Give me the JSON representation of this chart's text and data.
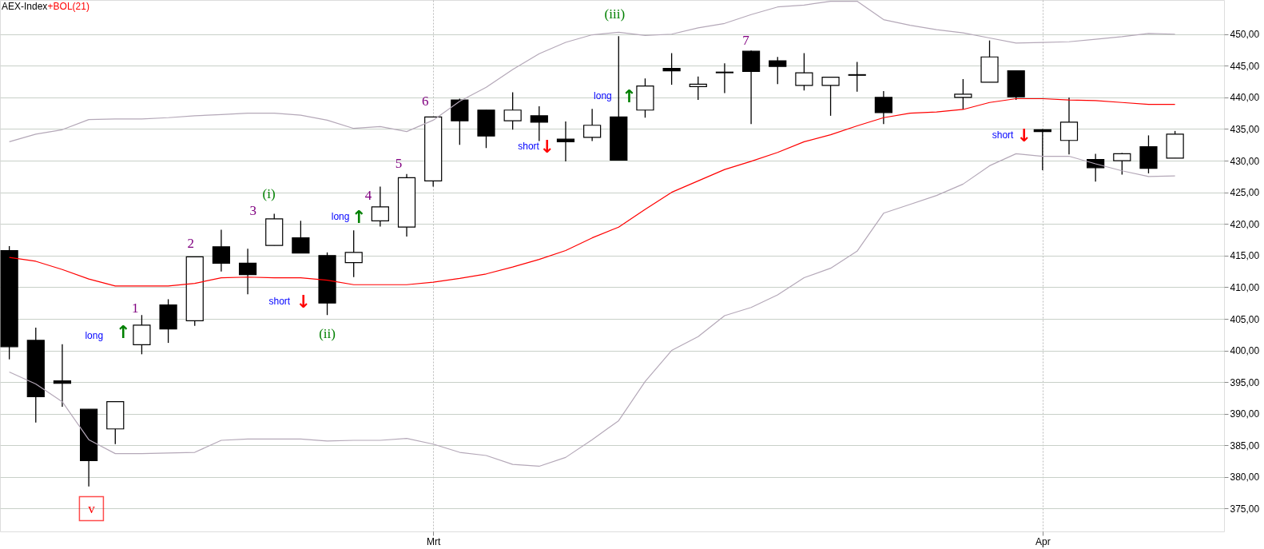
{
  "chart_data": {
    "type": "candlestick",
    "title": "AEX-Index",
    "categories": [
      null,
      null,
      null,
      null,
      null,
      null,
      null,
      null,
      null,
      null,
      null,
      null,
      null,
      null,
      null,
      null,
      "Mrt",
      null,
      null,
      null,
      null,
      null,
      null,
      null,
      null,
      null,
      null,
      null,
      null,
      null,
      null,
      null,
      null,
      null,
      null,
      null,
      null,
      null,
      null,
      "Apr",
      null,
      null,
      null,
      null,
      null
    ],
    "ohlc": [
      [
        415.8,
        416.5,
        398.6,
        400.6
      ],
      [
        401.6,
        403.6,
        388.6,
        392.7
      ],
      [
        395.2,
        401.0,
        391.1,
        394.8
      ],
      [
        390.7,
        390.7,
        378.5,
        382.6
      ],
      [
        387.6,
        391.9,
        385.2,
        391.9
      ],
      [
        400.9,
        405.6,
        399.4,
        404.0
      ],
      [
        407.2,
        408.1,
        401.2,
        403.4
      ],
      [
        404.7,
        414.8,
        403.9,
        414.8
      ],
      [
        416.4,
        419.1,
        412.5,
        413.8
      ],
      [
        413.8,
        416.1,
        408.9,
        412.0
      ],
      [
        416.6,
        421.6,
        416.6,
        420.8
      ],
      [
        417.8,
        420.5,
        415.4,
        415.4
      ],
      [
        415.0,
        415.5,
        405.6,
        407.5
      ],
      [
        413.9,
        419.0,
        411.6,
        415.5
      ],
      [
        420.5,
        425.9,
        419.6,
        422.7
      ],
      [
        419.5,
        427.9,
        418.0,
        427.3
      ],
      [
        426.8,
        436.9,
        425.9,
        436.9
      ],
      [
        439.6,
        439.8,
        432.5,
        436.3
      ],
      [
        438.0,
        438.0,
        432.0,
        433.9
      ],
      [
        436.3,
        440.8,
        434.9,
        438.0
      ],
      [
        437.1,
        438.6,
        433.1,
        436.1
      ],
      [
        433.4,
        436.2,
        429.9,
        433.0
      ],
      [
        433.7,
        438.2,
        433.1,
        435.6
      ],
      [
        436.9,
        449.7,
        430.1,
        430.1
      ],
      [
        438.0,
        443.0,
        436.8,
        441.8
      ],
      [
        444.6,
        447.0,
        442.0,
        444.2
      ],
      [
        441.7,
        443.3,
        439.6,
        442.1
      ],
      [
        443.9,
        445.4,
        440.7,
        444.0
      ],
      [
        447.3,
        447.4,
        435.8,
        444.1
      ],
      [
        445.8,
        446.4,
        442.1,
        444.9
      ],
      [
        441.9,
        447.0,
        441.1,
        443.9
      ],
      [
        441.9,
        443.2,
        437.1,
        443.2
      ],
      [
        443.5,
        445.6,
        440.9,
        443.6
      ],
      [
        440.0,
        441.0,
        435.8,
        437.6
      ],
      null,
      null,
      [
        440.0,
        442.9,
        438.1,
        440.5
      ],
      [
        442.4,
        449.0,
        442.4,
        446.4
      ],
      [
        444.2,
        444.2,
        439.6,
        440.1
      ],
      [
        434.9,
        435.0,
        428.5,
        434.6
      ],
      [
        433.2,
        440.0,
        431.0,
        436.1
      ],
      [
        430.2,
        431.1,
        426.7,
        428.9
      ],
      [
        430.0,
        431.2,
        427.8,
        431.1
      ],
      [
        432.2,
        434.0,
        428.0,
        428.8
      ],
      [
        430.4,
        434.7,
        430.4,
        434.2
      ]
    ],
    "colors": [
      "#000000",
      "#000000",
      "#000000",
      "#000000",
      "#ffffff",
      "#ffffff",
      "#000000",
      "#ffffff",
      "#000000",
      "#000000",
      "#ffffff",
      "#000000",
      "#000000",
      "#ffffff",
      "#ffffff",
      "#ffffff",
      "#ffffff",
      "#000000",
      "#000000",
      "#ffffff",
      "#000000",
      "#000000",
      "#ffffff",
      "#000000",
      "#ffffff",
      "#000000",
      "#ffffff",
      "#ffffff",
      "#000000",
      "#000000",
      "#ffffff",
      "#ffffff",
      "#ffffff",
      "#000000",
      null,
      null,
      "#ffffff",
      "#ffffff",
      "#000000",
      "#000000",
      "#ffffff",
      "#000000",
      "#ffffff",
      "#000000",
      "#ffffff"
    ],
    "color": "#000000",
    "series": [
      {
        "name": "+BOL(21)",
        "type": "line",
        "color": "#ff0000",
        "values": [
          414.7,
          414.1,
          412.8,
          411.3,
          410.2,
          410.2,
          410.2,
          410.6,
          411.5,
          411.6,
          411.5,
          411.5,
          411.1,
          410.4,
          410.4,
          410.4,
          410.8,
          411.4,
          412.1,
          413.2,
          414.4,
          415.8,
          417.8,
          419.5,
          422.3,
          425.0,
          426.8,
          428.6,
          429.9,
          431.3,
          433.0,
          434.1,
          435.5,
          436.8,
          437.5,
          437.7,
          438.1,
          439.2,
          439.8,
          439.8,
          439.6,
          439.5,
          439.2,
          438.9,
          438.9
        ]
      },
      {
        "type": "line",
        "color": "#b4a8b8",
        "values": [
          433.0,
          434.2,
          434.9,
          436.5,
          436.6,
          436.6,
          436.8,
          437.1,
          437.3,
          437.5,
          437.5,
          437.2,
          436.4,
          435.1,
          435.4,
          434.6,
          436.4,
          439.4,
          441.6,
          444.4,
          446.9,
          448.7,
          449.9,
          450.3,
          449.8,
          450.0,
          451.0,
          451.7,
          453.1,
          454.3,
          454.6,
          455.2,
          455.2,
          452.3,
          451.4,
          450.7,
          450.2,
          449.4,
          448.6,
          448.7,
          448.8,
          449.2,
          449.6,
          450.1,
          450.0
        ]
      },
      {
        "type": "line",
        "color": "#b4a8b8",
        "values": [
          396.6,
          394.7,
          391.9,
          385.9,
          383.7,
          383.7,
          383.8,
          383.9,
          385.8,
          386.0,
          386.0,
          386.0,
          385.7,
          385.8,
          385.8,
          386.1,
          385.2,
          383.9,
          383.4,
          382.0,
          381.7,
          383.1,
          385.9,
          388.9,
          395.1,
          400.0,
          402.2,
          405.5,
          406.8,
          408.8,
          411.5,
          413.0,
          415.7,
          421.7,
          423.1,
          424.5,
          426.3,
          429.2,
          431.1,
          430.7,
          430.7,
          429.5,
          428.4,
          427.5,
          427.6
        ]
      }
    ],
    "ylim": [
      371.4,
      455.4
    ],
    "yticks": [
      {
        "value": 375,
        "label": "375,00"
      },
      {
        "value": 380,
        "label": "380,00"
      },
      {
        "value": 385,
        "label": "385,00"
      },
      {
        "value": 390,
        "label": "390,00"
      },
      {
        "value": 395,
        "label": "395,00"
      },
      {
        "value": 400,
        "label": "400,00"
      },
      {
        "value": 405,
        "label": "405,00"
      },
      {
        "value": 410,
        "label": "410,00"
      },
      {
        "value": 415,
        "label": "415,00"
      },
      {
        "value": 420,
        "label": "420,00"
      },
      {
        "value": 425,
        "label": "425,00"
      },
      {
        "value": 430,
        "label": "430,00"
      },
      {
        "value": 435,
        "label": "435,00"
      },
      {
        "value": 440,
        "label": "440,00"
      },
      {
        "value": 445,
        "label": "445,00"
      },
      {
        "value": 450,
        "label": "450,00"
      }
    ],
    "grid": true,
    "annotations": [
      "v",
      "1",
      "2",
      "3",
      "(i)",
      "(ii)",
      "4",
      "5",
      "6",
      "(iii)",
      "7",
      "long",
      "↑",
      "short",
      "↓",
      "long",
      "↑",
      "short",
      "↓",
      "long",
      "↑",
      "short",
      "↓"
    ]
  }
}
